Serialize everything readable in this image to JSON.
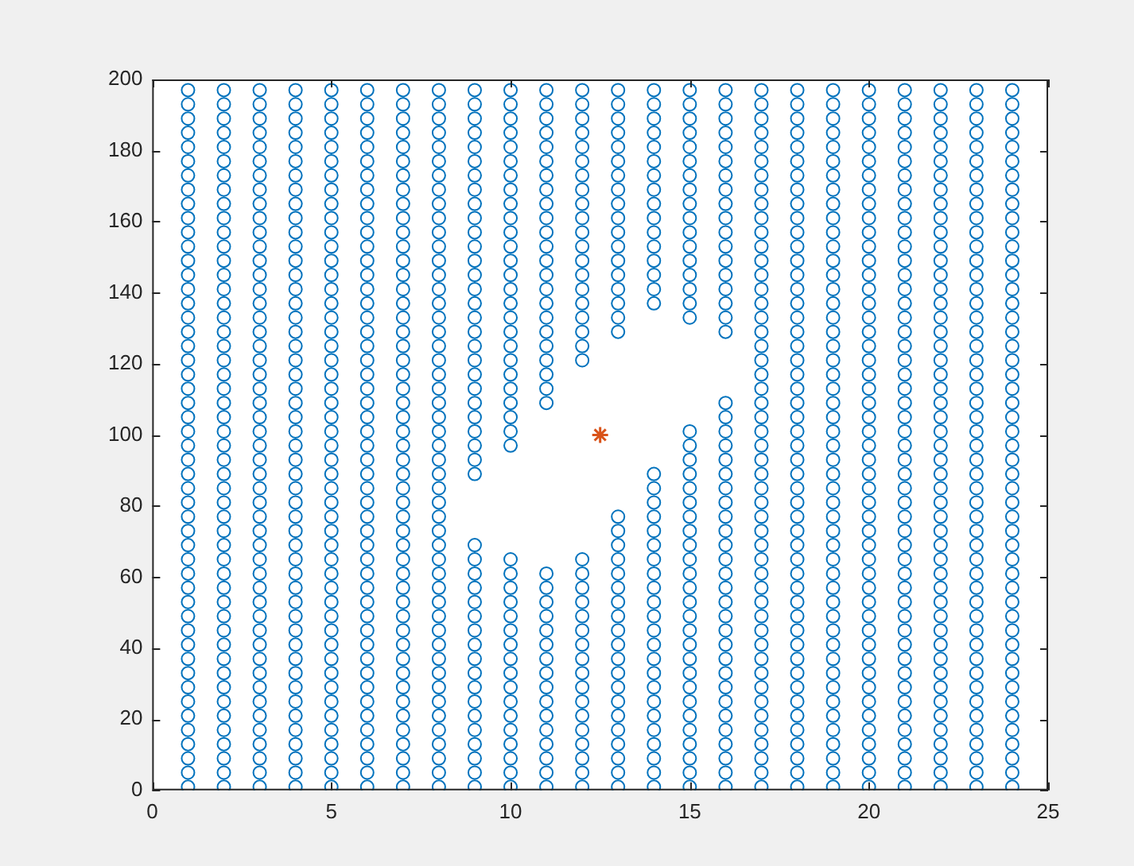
{
  "chart_data": {
    "type": "scatter",
    "marker": "circle",
    "grid": false,
    "legend": false,
    "xlim": [
      0,
      25
    ],
    "xticks": [
      0,
      5,
      10,
      15,
      20,
      25
    ],
    "ylim": [
      0,
      200
    ],
    "yticks": [
      0,
      20,
      40,
      60,
      80,
      100,
      120,
      140,
      160,
      180,
      200
    ],
    "series": [
      {
        "color": "#0072bd",
        "x": [
          1,
          1,
          1,
          1,
          1,
          1,
          1,
          1,
          1,
          1,
          1,
          1,
          1,
          1,
          1,
          1,
          1,
          1,
          1,
          1,
          1,
          1,
          1,
          1,
          1,
          1,
          1,
          1,
          1,
          1,
          1,
          1,
          1,
          1,
          1,
          1,
          1,
          1,
          1,
          1,
          1,
          1,
          1,
          1,
          1,
          1,
          1,
          1,
          1,
          1
        ],
        "values": [
          1,
          5,
          9,
          13,
          17,
          21,
          25,
          29,
          33,
          37,
          41,
          45,
          49,
          53,
          57,
          61,
          65,
          69,
          73,
          77,
          81,
          85,
          89,
          93,
          97,
          101,
          105,
          109,
          113,
          117,
          121,
          125,
          129,
          133,
          137,
          141,
          145,
          149,
          153,
          157,
          161,
          165,
          169,
          173,
          177,
          181,
          185,
          189,
          193,
          197
        ]
      },
      {
        "color": "#0072bd",
        "x": [
          2,
          2,
          2,
          2,
          2,
          2,
          2,
          2,
          2,
          2,
          2,
          2,
          2,
          2,
          2,
          2,
          2,
          2,
          2,
          2,
          2,
          2,
          2,
          2,
          2,
          2,
          2,
          2,
          2,
          2,
          2,
          2,
          2,
          2,
          2,
          2,
          2,
          2,
          2,
          2,
          2,
          2,
          2,
          2,
          2,
          2,
          2,
          2,
          2,
          2
        ],
        "values": [
          1,
          5,
          9,
          13,
          17,
          21,
          25,
          29,
          33,
          37,
          41,
          45,
          49,
          53,
          57,
          61,
          65,
          69,
          73,
          77,
          81,
          85,
          89,
          93,
          97,
          101,
          105,
          109,
          113,
          117,
          121,
          125,
          129,
          133,
          137,
          141,
          145,
          149,
          153,
          157,
          161,
          165,
          169,
          173,
          177,
          181,
          185,
          189,
          193,
          197
        ]
      },
      {
        "color": "#0072bd",
        "x": [
          3,
          3,
          3,
          3,
          3,
          3,
          3,
          3,
          3,
          3,
          3,
          3,
          3,
          3,
          3,
          3,
          3,
          3,
          3,
          3,
          3,
          3,
          3,
          3,
          3,
          3,
          3,
          3,
          3,
          3,
          3,
          3,
          3,
          3,
          3,
          3,
          3,
          3,
          3,
          3,
          3,
          3,
          3,
          3,
          3,
          3,
          3,
          3,
          3,
          3
        ],
        "values": [
          1,
          5,
          9,
          13,
          17,
          21,
          25,
          29,
          33,
          37,
          41,
          45,
          49,
          53,
          57,
          61,
          65,
          69,
          73,
          77,
          81,
          85,
          89,
          93,
          97,
          101,
          105,
          109,
          113,
          117,
          121,
          125,
          129,
          133,
          137,
          141,
          145,
          149,
          153,
          157,
          161,
          165,
          169,
          173,
          177,
          181,
          185,
          189,
          193,
          197
        ]
      },
      {
        "color": "#0072bd",
        "x": [
          4,
          4,
          4,
          4,
          4,
          4,
          4,
          4,
          4,
          4,
          4,
          4,
          4,
          4,
          4,
          4,
          4,
          4,
          4,
          4,
          4,
          4,
          4,
          4,
          4,
          4,
          4,
          4,
          4,
          4,
          4,
          4,
          4,
          4,
          4,
          4,
          4,
          4,
          4,
          4,
          4,
          4,
          4,
          4,
          4,
          4,
          4,
          4,
          4,
          4
        ],
        "values": [
          1,
          5,
          9,
          13,
          17,
          21,
          25,
          29,
          33,
          37,
          41,
          45,
          49,
          53,
          57,
          61,
          65,
          69,
          73,
          77,
          81,
          85,
          89,
          93,
          97,
          101,
          105,
          109,
          113,
          117,
          121,
          125,
          129,
          133,
          137,
          141,
          145,
          149,
          153,
          157,
          161,
          165,
          169,
          173,
          177,
          181,
          185,
          189,
          193,
          197
        ]
      },
      {
        "color": "#0072bd",
        "x": [
          5,
          5,
          5,
          5,
          5,
          5,
          5,
          5,
          5,
          5,
          5,
          5,
          5,
          5,
          5,
          5,
          5,
          5,
          5,
          5,
          5,
          5,
          5,
          5,
          5,
          5,
          5,
          5,
          5,
          5,
          5,
          5,
          5,
          5,
          5,
          5,
          5,
          5,
          5,
          5,
          5,
          5,
          5,
          5,
          5,
          5,
          5,
          5,
          5,
          5
        ],
        "values": [
          1,
          5,
          9,
          13,
          17,
          21,
          25,
          29,
          33,
          37,
          41,
          45,
          49,
          53,
          57,
          61,
          65,
          69,
          73,
          77,
          81,
          85,
          89,
          93,
          97,
          101,
          105,
          109,
          113,
          117,
          121,
          125,
          129,
          133,
          137,
          141,
          145,
          149,
          153,
          157,
          161,
          165,
          169,
          173,
          177,
          181,
          185,
          189,
          193,
          197
        ]
      },
      {
        "color": "#0072bd",
        "x": [
          6,
          6,
          6,
          6,
          6,
          6,
          6,
          6,
          6,
          6,
          6,
          6,
          6,
          6,
          6,
          6,
          6,
          6,
          6,
          6,
          6,
          6,
          6,
          6,
          6,
          6,
          6,
          6,
          6,
          6,
          6,
          6,
          6,
          6,
          6,
          6,
          6,
          6,
          6,
          6,
          6,
          6,
          6,
          6,
          6,
          6,
          6,
          6,
          6,
          6
        ],
        "values": [
          1,
          5,
          9,
          13,
          17,
          21,
          25,
          29,
          33,
          37,
          41,
          45,
          49,
          53,
          57,
          61,
          65,
          69,
          73,
          77,
          81,
          85,
          89,
          93,
          97,
          101,
          105,
          109,
          113,
          117,
          121,
          125,
          129,
          133,
          137,
          141,
          145,
          149,
          153,
          157,
          161,
          165,
          169,
          173,
          177,
          181,
          185,
          189,
          193,
          197
        ]
      },
      {
        "color": "#0072bd",
        "x": [
          7,
          7,
          7,
          7,
          7,
          7,
          7,
          7,
          7,
          7,
          7,
          7,
          7,
          7,
          7,
          7,
          7,
          7,
          7,
          7,
          7,
          7,
          7,
          7,
          7,
          7,
          7,
          7,
          7,
          7,
          7,
          7,
          7,
          7,
          7,
          7,
          7,
          7,
          7,
          7,
          7,
          7,
          7,
          7,
          7,
          7,
          7,
          7,
          7,
          7
        ],
        "values": [
          1,
          5,
          9,
          13,
          17,
          21,
          25,
          29,
          33,
          37,
          41,
          45,
          49,
          53,
          57,
          61,
          65,
          69,
          73,
          77,
          81,
          85,
          89,
          93,
          97,
          101,
          105,
          109,
          113,
          117,
          121,
          125,
          129,
          133,
          137,
          141,
          145,
          149,
          153,
          157,
          161,
          165,
          169,
          173,
          177,
          181,
          185,
          189,
          193,
          197
        ]
      },
      {
        "color": "#0072bd",
        "x": [
          8,
          8,
          8,
          8,
          8,
          8,
          8,
          8,
          8,
          8,
          8,
          8,
          8,
          8,
          8,
          8,
          8,
          8,
          8,
          8,
          8,
          8,
          8,
          8,
          8,
          8,
          8,
          8,
          8,
          8,
          8,
          8,
          8,
          8,
          8,
          8,
          8,
          8,
          8,
          8,
          8,
          8,
          8,
          8,
          8,
          8,
          8,
          8,
          8,
          8
        ],
        "values": [
          1,
          5,
          9,
          13,
          17,
          21,
          25,
          29,
          33,
          37,
          41,
          45,
          49,
          53,
          57,
          61,
          65,
          69,
          73,
          77,
          81,
          85,
          89,
          93,
          97,
          101,
          105,
          109,
          113,
          117,
          121,
          125,
          129,
          133,
          137,
          141,
          145,
          149,
          153,
          157,
          161,
          165,
          169,
          173,
          177,
          181,
          185,
          189,
          193,
          197
        ]
      },
      {
        "color": "#0072bd",
        "x": [
          9,
          9,
          9,
          9,
          9,
          9,
          9,
          9,
          9,
          9,
          9,
          9,
          9,
          9,
          9,
          9,
          9,
          9,
          9,
          9,
          9,
          9,
          9,
          9,
          9,
          9,
          9,
          9,
          9,
          9,
          9,
          9,
          9,
          9,
          9,
          9,
          9,
          9,
          9,
          9,
          9,
          9,
          9,
          9,
          9,
          9
        ],
        "values": [
          1,
          5,
          9,
          13,
          17,
          21,
          25,
          29,
          33,
          37,
          41,
          45,
          49,
          53,
          57,
          61,
          65,
          69,
          89,
          93,
          97,
          101,
          105,
          109,
          113,
          117,
          121,
          125,
          129,
          133,
          137,
          141,
          145,
          149,
          153,
          157,
          161,
          165,
          169,
          173,
          177,
          181,
          185,
          189,
          193,
          197
        ]
      },
      {
        "color": "#0072bd",
        "x": [
          10,
          10,
          10,
          10,
          10,
          10,
          10,
          10,
          10,
          10,
          10,
          10,
          10,
          10,
          10,
          10,
          10,
          10,
          10,
          10,
          10,
          10,
          10,
          10,
          10,
          10,
          10,
          10,
          10,
          10,
          10,
          10,
          10,
          10,
          10,
          10,
          10,
          10,
          10,
          10,
          10,
          10,
          10
        ],
        "values": [
          1,
          5,
          9,
          13,
          17,
          21,
          25,
          29,
          33,
          37,
          41,
          45,
          49,
          53,
          57,
          61,
          65,
          97,
          101,
          105,
          109,
          113,
          117,
          121,
          125,
          129,
          133,
          137,
          141,
          145,
          149,
          153,
          157,
          161,
          165,
          169,
          173,
          177,
          181,
          185,
          189,
          193,
          197
        ]
      },
      {
        "color": "#0072bd",
        "x": [
          11,
          11,
          11,
          11,
          11,
          11,
          11,
          11,
          11,
          11,
          11,
          11,
          11,
          11,
          11,
          11,
          11,
          11,
          11,
          11,
          11,
          11,
          11,
          11,
          11,
          11,
          11,
          11,
          11,
          11,
          11,
          11,
          11,
          11,
          11,
          11,
          11,
          11,
          11
        ],
        "values": [
          1,
          5,
          9,
          13,
          17,
          21,
          25,
          29,
          33,
          37,
          41,
          45,
          49,
          53,
          57,
          61,
          109,
          113,
          117,
          121,
          125,
          129,
          133,
          137,
          141,
          145,
          149,
          153,
          157,
          161,
          165,
          169,
          173,
          177,
          181,
          185,
          189,
          193,
          197
        ]
      },
      {
        "color": "#0072bd",
        "x": [
          12,
          12,
          12,
          12,
          12,
          12,
          12,
          12,
          12,
          12,
          12,
          12,
          12,
          12,
          12,
          12,
          12,
          12,
          12,
          12,
          12,
          12,
          12,
          12,
          12,
          12,
          12,
          12,
          12,
          12,
          12,
          12,
          12,
          12,
          12,
          12,
          12
        ],
        "values": [
          1,
          5,
          9,
          13,
          17,
          21,
          25,
          29,
          33,
          37,
          41,
          45,
          49,
          53,
          57,
          61,
          65,
          121,
          125,
          129,
          133,
          137,
          141,
          145,
          149,
          153,
          157,
          161,
          165,
          169,
          173,
          177,
          181,
          185,
          189,
          193,
          197
        ]
      },
      {
        "color": "#0072bd",
        "x": [
          13,
          13,
          13,
          13,
          13,
          13,
          13,
          13,
          13,
          13,
          13,
          13,
          13,
          13,
          13,
          13,
          13,
          13,
          13,
          13,
          13,
          13,
          13,
          13,
          13,
          13,
          13,
          13,
          13,
          13,
          13,
          13,
          13,
          13,
          13,
          13,
          13,
          13
        ],
        "values": [
          1,
          5,
          9,
          13,
          17,
          21,
          25,
          29,
          33,
          37,
          41,
          45,
          49,
          53,
          57,
          61,
          65,
          69,
          73,
          77,
          129,
          133,
          137,
          141,
          145,
          149,
          153,
          157,
          161,
          165,
          169,
          173,
          177,
          181,
          185,
          189,
          193,
          197
        ]
      },
      {
        "color": "#0072bd",
        "x": [
          14,
          14,
          14,
          14,
          14,
          14,
          14,
          14,
          14,
          14,
          14,
          14,
          14,
          14,
          14,
          14,
          14,
          14,
          14,
          14,
          14,
          14,
          14,
          14,
          14,
          14,
          14,
          14,
          14,
          14,
          14,
          14,
          14,
          14,
          14,
          14,
          14,
          14,
          14
        ],
        "values": [
          1,
          5,
          9,
          13,
          17,
          21,
          25,
          29,
          33,
          37,
          41,
          45,
          49,
          53,
          57,
          61,
          65,
          69,
          73,
          77,
          81,
          85,
          89,
          137,
          141,
          145,
          149,
          153,
          157,
          161,
          165,
          169,
          173,
          177,
          181,
          185,
          189,
          193,
          197
        ]
      },
      {
        "color": "#0072bd",
        "x": [
          15,
          15,
          15,
          15,
          15,
          15,
          15,
          15,
          15,
          15,
          15,
          15,
          15,
          15,
          15,
          15,
          15,
          15,
          15,
          15,
          15,
          15,
          15,
          15,
          15,
          15,
          15,
          15,
          15,
          15,
          15,
          15,
          15,
          15,
          15,
          15,
          15,
          15,
          15,
          15,
          15,
          15,
          15
        ],
        "values": [
          1,
          5,
          9,
          13,
          17,
          21,
          25,
          29,
          33,
          37,
          41,
          45,
          49,
          53,
          57,
          61,
          65,
          69,
          73,
          77,
          81,
          85,
          89,
          93,
          97,
          101,
          133,
          137,
          141,
          145,
          149,
          153,
          157,
          161,
          165,
          169,
          173,
          177,
          181,
          185,
          189,
          193,
          197
        ]
      },
      {
        "color": "#0072bd",
        "x": [
          16,
          16,
          16,
          16,
          16,
          16,
          16,
          16,
          16,
          16,
          16,
          16,
          16,
          16,
          16,
          16,
          16,
          16,
          16,
          16,
          16,
          16,
          16,
          16,
          16,
          16,
          16,
          16,
          16,
          16,
          16,
          16,
          16,
          16,
          16,
          16,
          16,
          16,
          16,
          16,
          16,
          16,
          16,
          16,
          16,
          16
        ],
        "values": [
          1,
          5,
          9,
          13,
          17,
          21,
          25,
          29,
          33,
          37,
          41,
          45,
          49,
          53,
          57,
          61,
          65,
          69,
          73,
          77,
          81,
          85,
          89,
          93,
          97,
          101,
          105,
          109,
          129,
          133,
          137,
          141,
          145,
          149,
          153,
          157,
          161,
          165,
          169,
          173,
          177,
          181,
          185,
          189,
          193,
          197
        ]
      },
      {
        "color": "#0072bd",
        "x": [
          17,
          17,
          17,
          17,
          17,
          17,
          17,
          17,
          17,
          17,
          17,
          17,
          17,
          17,
          17,
          17,
          17,
          17,
          17,
          17,
          17,
          17,
          17,
          17,
          17,
          17,
          17,
          17,
          17,
          17,
          17,
          17,
          17,
          17,
          17,
          17,
          17,
          17,
          17,
          17,
          17,
          17,
          17,
          17,
          17,
          17,
          17,
          17,
          17,
          17
        ],
        "values": [
          1,
          5,
          9,
          13,
          17,
          21,
          25,
          29,
          33,
          37,
          41,
          45,
          49,
          53,
          57,
          61,
          65,
          69,
          73,
          77,
          81,
          85,
          89,
          93,
          97,
          101,
          105,
          109,
          113,
          117,
          121,
          125,
          129,
          133,
          137,
          141,
          145,
          149,
          153,
          157,
          161,
          165,
          169,
          173,
          177,
          181,
          185,
          189,
          193,
          197
        ]
      },
      {
        "color": "#0072bd",
        "x": [
          18,
          18,
          18,
          18,
          18,
          18,
          18,
          18,
          18,
          18,
          18,
          18,
          18,
          18,
          18,
          18,
          18,
          18,
          18,
          18,
          18,
          18,
          18,
          18,
          18,
          18,
          18,
          18,
          18,
          18,
          18,
          18,
          18,
          18,
          18,
          18,
          18,
          18,
          18,
          18,
          18,
          18,
          18,
          18,
          18,
          18,
          18,
          18,
          18,
          18
        ],
        "values": [
          1,
          5,
          9,
          13,
          17,
          21,
          25,
          29,
          33,
          37,
          41,
          45,
          49,
          53,
          57,
          61,
          65,
          69,
          73,
          77,
          81,
          85,
          89,
          93,
          97,
          101,
          105,
          109,
          113,
          117,
          121,
          125,
          129,
          133,
          137,
          141,
          145,
          149,
          153,
          157,
          161,
          165,
          169,
          173,
          177,
          181,
          185,
          189,
          193,
          197
        ]
      },
      {
        "color": "#0072bd",
        "x": [
          19,
          19,
          19,
          19,
          19,
          19,
          19,
          19,
          19,
          19,
          19,
          19,
          19,
          19,
          19,
          19,
          19,
          19,
          19,
          19,
          19,
          19,
          19,
          19,
          19,
          19,
          19,
          19,
          19,
          19,
          19,
          19,
          19,
          19,
          19,
          19,
          19,
          19,
          19,
          19,
          19,
          19,
          19,
          19,
          19,
          19,
          19,
          19,
          19,
          19
        ],
        "values": [
          1,
          5,
          9,
          13,
          17,
          21,
          25,
          29,
          33,
          37,
          41,
          45,
          49,
          53,
          57,
          61,
          65,
          69,
          73,
          77,
          81,
          85,
          89,
          93,
          97,
          101,
          105,
          109,
          113,
          117,
          121,
          125,
          129,
          133,
          137,
          141,
          145,
          149,
          153,
          157,
          161,
          165,
          169,
          173,
          177,
          181,
          185,
          189,
          193,
          197
        ]
      },
      {
        "color": "#0072bd",
        "x": [
          20,
          20,
          20,
          20,
          20,
          20,
          20,
          20,
          20,
          20,
          20,
          20,
          20,
          20,
          20,
          20,
          20,
          20,
          20,
          20,
          20,
          20,
          20,
          20,
          20,
          20,
          20,
          20,
          20,
          20,
          20,
          20,
          20,
          20,
          20,
          20,
          20,
          20,
          20,
          20,
          20,
          20,
          20,
          20,
          20,
          20,
          20,
          20,
          20,
          20
        ],
        "values": [
          1,
          5,
          9,
          13,
          17,
          21,
          25,
          29,
          33,
          37,
          41,
          45,
          49,
          53,
          57,
          61,
          65,
          69,
          73,
          77,
          81,
          85,
          89,
          93,
          97,
          101,
          105,
          109,
          113,
          117,
          121,
          125,
          129,
          133,
          137,
          141,
          145,
          149,
          153,
          157,
          161,
          165,
          169,
          173,
          177,
          181,
          185,
          189,
          193,
          197
        ]
      },
      {
        "color": "#0072bd",
        "x": [
          21,
          21,
          21,
          21,
          21,
          21,
          21,
          21,
          21,
          21,
          21,
          21,
          21,
          21,
          21,
          21,
          21,
          21,
          21,
          21,
          21,
          21,
          21,
          21,
          21,
          21,
          21,
          21,
          21,
          21,
          21,
          21,
          21,
          21,
          21,
          21,
          21,
          21,
          21,
          21,
          21,
          21,
          21,
          21,
          21,
          21,
          21,
          21,
          21,
          21
        ],
        "values": [
          1,
          5,
          9,
          13,
          17,
          21,
          25,
          29,
          33,
          37,
          41,
          45,
          49,
          53,
          57,
          61,
          65,
          69,
          73,
          77,
          81,
          85,
          89,
          93,
          97,
          101,
          105,
          109,
          113,
          117,
          121,
          125,
          129,
          133,
          137,
          141,
          145,
          149,
          153,
          157,
          161,
          165,
          169,
          173,
          177,
          181,
          185,
          189,
          193,
          197
        ]
      },
      {
        "color": "#0072bd",
        "x": [
          22,
          22,
          22,
          22,
          22,
          22,
          22,
          22,
          22,
          22,
          22,
          22,
          22,
          22,
          22,
          22,
          22,
          22,
          22,
          22,
          22,
          22,
          22,
          22,
          22,
          22,
          22,
          22,
          22,
          22,
          22,
          22,
          22,
          22,
          22,
          22,
          22,
          22,
          22,
          22,
          22,
          22,
          22,
          22,
          22,
          22,
          22,
          22,
          22,
          22
        ],
        "values": [
          1,
          5,
          9,
          13,
          17,
          21,
          25,
          29,
          33,
          37,
          41,
          45,
          49,
          53,
          57,
          61,
          65,
          69,
          73,
          77,
          81,
          85,
          89,
          93,
          97,
          101,
          105,
          109,
          113,
          117,
          121,
          125,
          129,
          133,
          137,
          141,
          145,
          149,
          153,
          157,
          161,
          165,
          169,
          173,
          177,
          181,
          185,
          189,
          193,
          197
        ]
      },
      {
        "color": "#0072bd",
        "x": [
          23,
          23,
          23,
          23,
          23,
          23,
          23,
          23,
          23,
          23,
          23,
          23,
          23,
          23,
          23,
          23,
          23,
          23,
          23,
          23,
          23,
          23,
          23,
          23,
          23,
          23,
          23,
          23,
          23,
          23,
          23,
          23,
          23,
          23,
          23,
          23,
          23,
          23,
          23,
          23,
          23,
          23,
          23,
          23,
          23,
          23,
          23,
          23,
          23,
          23
        ],
        "values": [
          1,
          5,
          9,
          13,
          17,
          21,
          25,
          29,
          33,
          37,
          41,
          45,
          49,
          53,
          57,
          61,
          65,
          69,
          73,
          77,
          81,
          85,
          89,
          93,
          97,
          101,
          105,
          109,
          113,
          117,
          121,
          125,
          129,
          133,
          137,
          141,
          145,
          149,
          153,
          157,
          161,
          165,
          169,
          173,
          177,
          181,
          185,
          189,
          193,
          197
        ]
      },
      {
        "color": "#0072bd",
        "x": [
          24,
          24,
          24,
          24,
          24,
          24,
          24,
          24,
          24,
          24,
          24,
          24,
          24,
          24,
          24,
          24,
          24,
          24,
          24,
          24,
          24,
          24,
          24,
          24,
          24,
          24,
          24,
          24,
          24,
          24,
          24,
          24,
          24,
          24,
          24,
          24,
          24,
          24,
          24,
          24,
          24,
          24,
          24,
          24,
          24,
          24,
          24,
          24,
          24,
          24
        ],
        "values": [
          1,
          5,
          9,
          13,
          17,
          21,
          25,
          29,
          33,
          37,
          41,
          45,
          49,
          53,
          57,
          61,
          65,
          69,
          73,
          77,
          81,
          85,
          89,
          93,
          97,
          101,
          105,
          109,
          113,
          117,
          121,
          125,
          129,
          133,
          137,
          141,
          145,
          149,
          153,
          157,
          161,
          165,
          169,
          173,
          177,
          181,
          185,
          189,
          193,
          197
        ]
      },
      {
        "color": "#d95319",
        "marker": "cross",
        "x": [
          12.5
        ],
        "values": [
          100
        ]
      }
    ]
  }
}
